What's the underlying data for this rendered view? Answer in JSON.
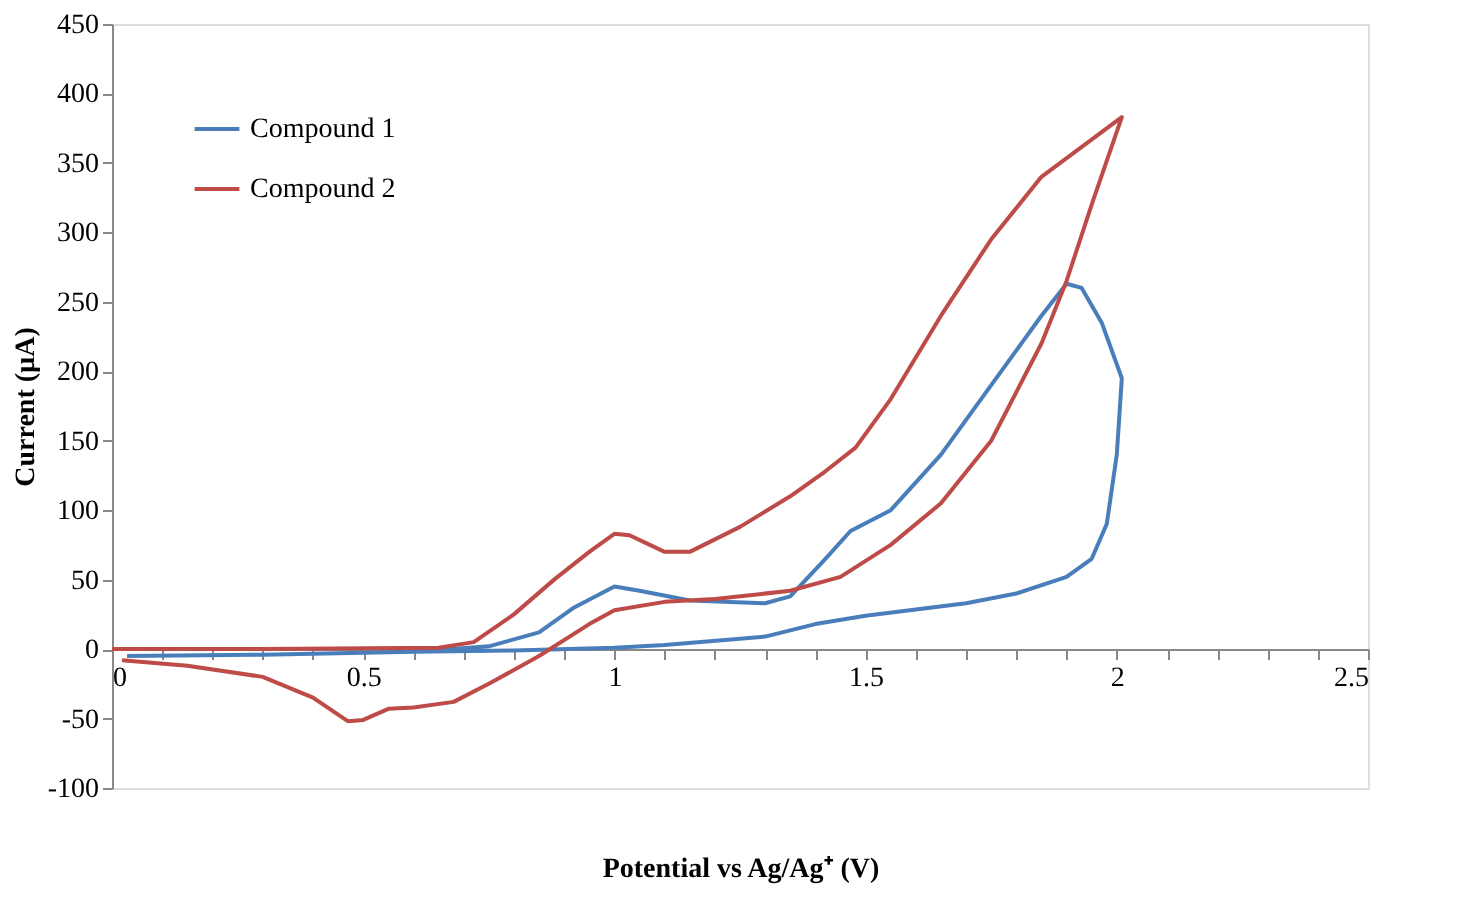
{
  "chart_data": {
    "type": "line",
    "xlabel": "Potential vs Ag/Ag⁺ (V)",
    "ylabel": "Current (µA)",
    "xlim": [
      0,
      2.5
    ],
    "ylim": [
      -100,
      450
    ],
    "xticks": [
      0,
      {
        "value": 0.1,
        "label": null
      },
      {
        "value": 0.2,
        "label": null
      },
      {
        "value": 0.3,
        "label": null
      },
      {
        "value": 0.4,
        "label": null
      },
      0.5,
      {
        "value": 0.6,
        "label": null
      },
      {
        "value": 0.7,
        "label": null
      },
      {
        "value": 0.8,
        "label": null
      },
      {
        "value": 0.9,
        "label": null
      },
      1,
      {
        "value": 1.1,
        "label": null
      },
      {
        "value": 1.2,
        "label": null
      },
      {
        "value": 1.3,
        "label": null
      },
      {
        "value": 1.4,
        "label": null
      },
      1.5,
      {
        "value": 1.6,
        "label": null
      },
      {
        "value": 1.7,
        "label": null
      },
      {
        "value": 1.8,
        "label": null
      },
      {
        "value": 1.9,
        "label": null
      },
      2,
      {
        "value": 2.1,
        "label": null
      },
      {
        "value": 2.2,
        "label": null
      },
      {
        "value": 2.3,
        "label": null
      },
      {
        "value": 2.4,
        "label": null
      },
      2.5
    ],
    "yticks": [
      -100,
      -50,
      0,
      50,
      100,
      150,
      200,
      250,
      300,
      350,
      400,
      450
    ],
    "grid": false,
    "legend": "top left",
    "marker": "none",
    "line_style": "solid",
    "series": [
      {
        "name": "Compound 1",
        "color": "#4a7ebb",
        "x": [
          0.03,
          0.3,
          0.6,
          0.75,
          0.85,
          0.92,
          1.0,
          1.05,
          1.15,
          1.3,
          1.35,
          1.42,
          1.47,
          1.55,
          1.65,
          1.75,
          1.85,
          1.9,
          1.93,
          1.97,
          2.01,
          2.0,
          1.98,
          1.95,
          1.9,
          1.8,
          1.7,
          1.5,
          1.4,
          1.3,
          1.1,
          1.0,
          0.8,
          0.6
        ],
        "values": [
          -5,
          -4,
          -2,
          2,
          12,
          30,
          45,
          42,
          35,
          33,
          38,
          65,
          85,
          100,
          140,
          190,
          240,
          263,
          260,
          235,
          195,
          140,
          90,
          65,
          52,
          40,
          33,
          24,
          18,
          9,
          3,
          1,
          -1,
          -2
        ]
      },
      {
        "name": "Compound 2",
        "color": "#be4b48",
        "x": [
          0.0,
          0.3,
          0.65,
          0.72,
          0.8,
          0.88,
          0.95,
          1.0,
          1.03,
          1.1,
          1.15,
          1.25,
          1.35,
          1.42,
          1.48,
          1.55,
          1.65,
          1.75,
          1.85,
          2.01,
          1.95,
          1.9,
          1.85,
          1.75,
          1.65,
          1.55,
          1.45,
          1.35,
          1.2,
          1.1,
          1.0,
          0.95,
          0.85,
          0.75,
          0.68,
          0.6,
          0.55,
          0.5,
          0.47,
          0.4,
          0.3,
          0.15,
          0.02
        ],
        "values": [
          0,
          0,
          1,
          5,
          25,
          50,
          70,
          83,
          82,
          70,
          70,
          88,
          110,
          128,
          145,
          180,
          240,
          295,
          340,
          383,
          320,
          265,
          220,
          150,
          105,
          75,
          52,
          42,
          36,
          34,
          28,
          18,
          -5,
          -25,
          -38,
          -42,
          -43,
          -51,
          -52,
          -35,
          -20,
          -12,
          -8
        ]
      }
    ]
  }
}
